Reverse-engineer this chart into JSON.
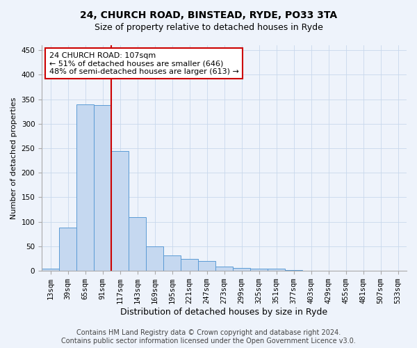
{
  "title1": "24, CHURCH ROAD, BINSTEAD, RYDE, PO33 3TA",
  "title2": "Size of property relative to detached houses in Ryde",
  "xlabel": "Distribution of detached houses by size in Ryde",
  "ylabel": "Number of detached properties",
  "categories": [
    "13sqm",
    "39sqm",
    "65sqm",
    "91sqm",
    "117sqm",
    "143sqm",
    "169sqm",
    "195sqm",
    "221sqm",
    "247sqm",
    "273sqm",
    "299sqm",
    "325sqm",
    "351sqm",
    "377sqm",
    "403sqm",
    "429sqm",
    "455sqm",
    "481sqm",
    "507sqm",
    "533sqm"
  ],
  "values": [
    5,
    88,
    340,
    338,
    245,
    110,
    50,
    31,
    25,
    20,
    9,
    6,
    5,
    4,
    2,
    1,
    1,
    0,
    0,
    0,
    0
  ],
  "bar_color": "#c5d8f0",
  "bar_edge_color": "#5b9bd5",
  "vline_x": 3.5,
  "vline_color": "#cc0000",
  "annotation_text": "24 CHURCH ROAD: 107sqm\n← 51% of detached houses are smaller (646)\n48% of semi-detached houses are larger (613) →",
  "annotation_box_color": "white",
  "annotation_box_edge": "#cc0000",
  "ylim": [
    0,
    460
  ],
  "yticks": [
    0,
    50,
    100,
    150,
    200,
    250,
    300,
    350,
    400,
    450
  ],
  "footer": "Contains HM Land Registry data © Crown copyright and database right 2024.\nContains public sector information licensed under the Open Government Licence v3.0.",
  "bg_color": "#eef3fb",
  "plot_bg_color": "#eef3fb",
  "title1_fontsize": 10,
  "title2_fontsize": 9,
  "xlabel_fontsize": 9,
  "ylabel_fontsize": 8,
  "tick_fontsize": 7.5,
  "footer_fontsize": 7,
  "annot_fontsize": 8
}
